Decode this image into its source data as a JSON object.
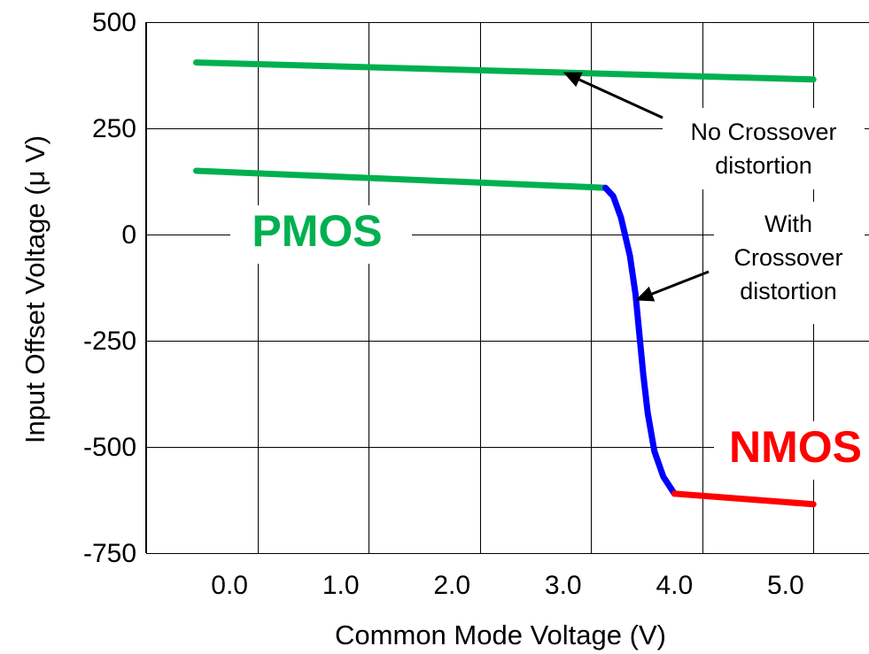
{
  "chart_data": {
    "type": "line",
    "title": "",
    "xlabel": "Common Mode Voltage (V)",
    "ylabel": "Input Offset Voltage (μ V)",
    "xlim": [
      -0.75,
      5.75
    ],
    "ylim": [
      -750,
      500
    ],
    "x_ticks": [
      "0.0",
      "1.0",
      "2.0",
      "3.0",
      "4.0",
      "5.0"
    ],
    "y_ticks": [
      "500",
      "250",
      "0",
      "-250",
      "-500",
      "-750"
    ],
    "grid": true,
    "series": [
      {
        "name": "",
        "color": "#00b050",
        "points": [
          [
            -0.3,
            405
          ],
          [
            5.25,
            365
          ]
        ]
      },
      {
        "name": "",
        "color": "#00b050",
        "points": [
          [
            -0.3,
            150
          ],
          [
            3.38,
            110
          ]
        ]
      },
      {
        "name": "",
        "color": "#0000ff",
        "points": [
          [
            3.38,
            110
          ],
          [
            3.45,
            90
          ],
          [
            3.52,
            40
          ],
          [
            3.6,
            -50
          ],
          [
            3.65,
            -140
          ],
          [
            3.68,
            -220
          ],
          [
            3.72,
            -330
          ],
          [
            3.76,
            -420
          ],
          [
            3.82,
            -510
          ],
          [
            3.9,
            -570
          ],
          [
            4.0,
            -610
          ]
        ]
      },
      {
        "name": "",
        "color": "#ff0000",
        "points": [
          [
            4.0,
            -610
          ],
          [
            5.25,
            -635
          ]
        ]
      }
    ],
    "annotations": [
      {
        "lines": [
          "No Crossover",
          "distortion"
        ],
        "arrow_to": [
          3.0,
          382
        ]
      },
      {
        "lines": [
          "With",
          "Crossover",
          "distortion"
        ],
        "arrow_to": [
          3.65,
          -155
        ]
      }
    ],
    "labels": [
      {
        "text": "PMOS",
        "color": "#00b050"
      },
      {
        "text": "NMOS",
        "color": "#ff0000"
      }
    ]
  }
}
